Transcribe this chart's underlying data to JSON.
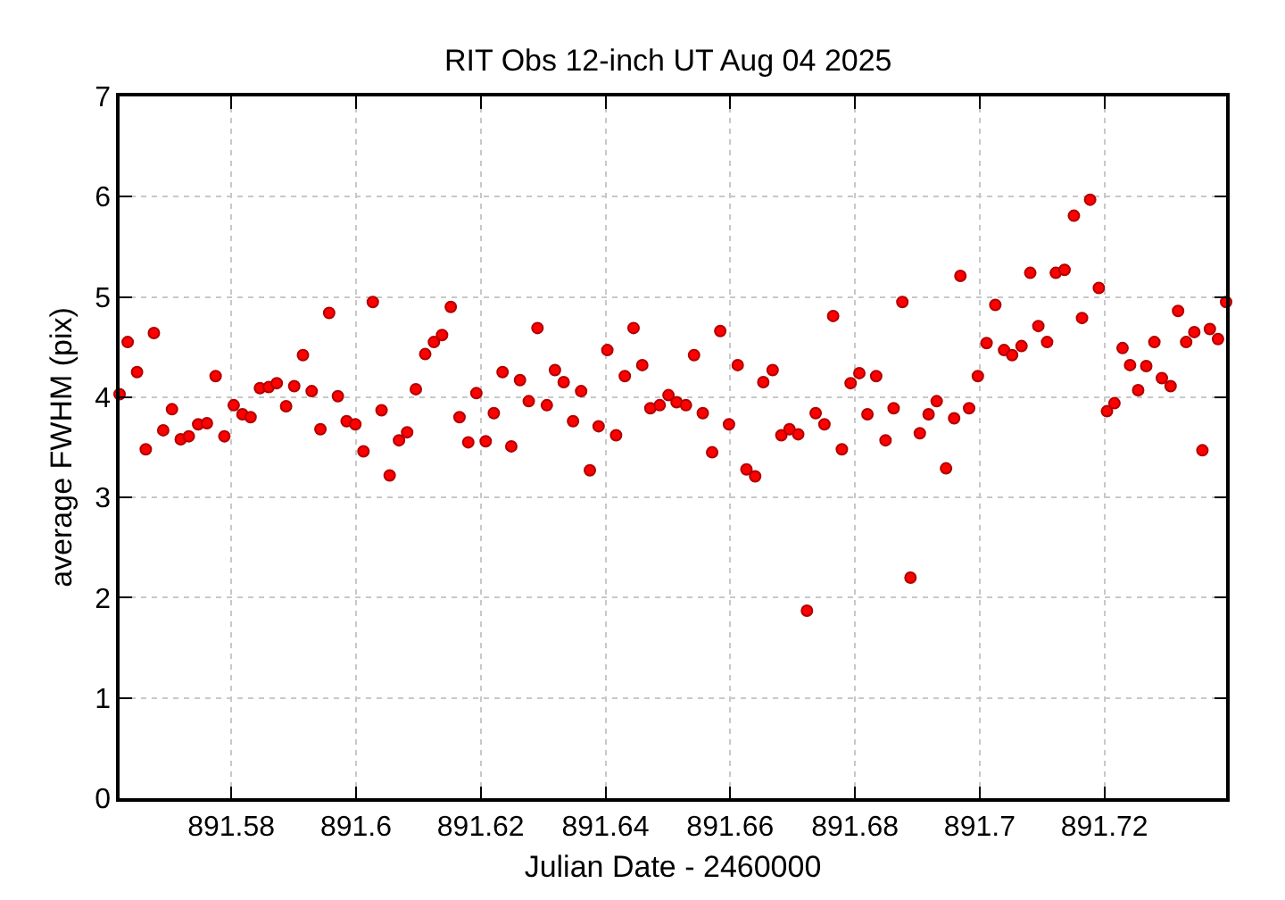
{
  "chart_data": {
    "type": "scatter",
    "title": "RIT Obs 12-inch UT Aug 04 2025",
    "xlabel": "Julian Date - 2460000",
    "ylabel": "average FWHM (pix)",
    "x": [
      891.5621,
      891.5634,
      891.5649,
      891.5663,
      891.5676,
      891.5691,
      891.5705,
      891.5719,
      891.5732,
      891.5747,
      891.5761,
      891.5775,
      891.5789,
      891.5804,
      891.5818,
      891.5831,
      891.5846,
      891.586,
      891.5873,
      891.5888,
      891.5901,
      891.5915,
      891.5929,
      891.5943,
      891.5957,
      891.5971,
      891.5985,
      891.5999,
      891.6012,
      891.6027,
      891.6041,
      891.6054,
      891.6069,
      891.6082,
      891.6096,
      891.6111,
      891.6125,
      891.6138,
      891.6152,
      891.6166,
      891.618,
      891.6193,
      891.6208,
      891.6221,
      891.6235,
      891.6249,
      891.6263,
      891.6277,
      891.6291,
      891.6306,
      891.6319,
      891.6333,
      891.6348,
      891.6361,
      891.6375,
      891.6389,
      891.6403,
      891.6417,
      891.6431,
      891.6445,
      891.6459,
      891.6472,
      891.6487,
      891.6501,
      891.6514,
      891.6529,
      891.6542,
      891.6556,
      891.6571,
      891.6584,
      891.6598,
      891.6612,
      891.6626,
      891.664,
      891.6653,
      891.6668,
      891.6682,
      891.6695,
      891.6709,
      891.6723,
      891.6737,
      891.6751,
      891.6765,
      891.6779,
      891.6793,
      891.6807,
      891.682,
      891.6834,
      891.6849,
      891.6862,
      891.6876,
      891.6889,
      891.6904,
      891.6918,
      891.6931,
      891.6946,
      891.6959,
      891.6969,
      891.6983,
      891.6997,
      891.7011,
      891.7025,
      891.7039,
      891.7052,
      891.7067,
      891.7081,
      891.7094,
      891.7108,
      891.7122,
      891.7136,
      891.7151,
      891.7164,
      891.7177,
      891.7191,
      891.7204,
      891.7216,
      891.7229,
      891.7241,
      891.7254,
      891.7267,
      891.728,
      891.7292,
      891.7306,
      891.7318,
      891.7331,
      891.7344,
      891.7357,
      891.7369,
      891.7382,
      891.7395
    ],
    "series": [
      {
        "color": "#ff0000",
        "values": [
          4.03,
          4.55,
          4.25,
          3.48,
          4.64,
          3.67,
          3.88,
          3.58,
          3.61,
          3.73,
          3.74,
          4.21,
          3.61,
          3.92,
          3.83,
          3.8,
          4.09,
          4.1,
          4.14,
          3.91,
          4.11,
          4.42,
          4.06,
          3.68,
          4.84,
          4.01,
          3.76,
          3.73,
          3.46,
          4.95,
          3.87,
          3.22,
          3.57,
          3.65,
          4.08,
          4.43,
          4.55,
          4.62,
          4.9,
          3.8,
          3.55,
          4.04,
          3.56,
          3.84,
          4.25,
          3.51,
          4.17,
          3.96,
          4.69,
          3.92,
          4.27,
          4.15,
          3.76,
          4.06,
          3.27,
          3.71,
          4.47,
          3.62,
          4.21,
          4.69,
          4.32,
          3.89,
          3.92,
          4.02,
          3.95,
          3.92,
          4.42,
          3.84,
          3.45,
          4.66,
          3.73,
          4.32,
          3.28,
          3.21,
          4.15,
          4.27,
          3.62,
          3.68,
          3.63,
          1.87,
          3.84,
          3.73,
          4.81,
          3.48,
          4.14,
          4.24,
          3.83,
          4.21,
          3.57,
          3.89,
          4.95,
          2.2,
          3.64,
          3.83,
          3.96,
          3.29,
          3.79,
          5.21,
          3.89,
          4.21,
          4.54,
          4.92,
          4.47,
          4.42,
          4.51,
          5.24,
          4.71,
          4.55,
          5.24,
          5.27,
          5.81,
          4.79,
          5.97,
          5.09,
          3.86,
          3.94,
          4.49,
          4.32,
          4.07,
          4.31,
          4.55,
          4.19,
          4.11,
          4.86,
          4.55,
          4.65,
          3.47,
          4.68,
          4.58,
          4.95
        ]
      }
    ],
    "xlim": [
      891.5621,
      891.7395
    ],
    "xticks": [
      891.58,
      891.6,
      891.62,
      891.64,
      891.66,
      891.68,
      891.7,
      891.72
    ],
    "ylim": [
      0,
      7
    ],
    "yticks": [
      0,
      1,
      2,
      3,
      4,
      5,
      6,
      7
    ],
    "grid": true,
    "marker": "circle"
  }
}
